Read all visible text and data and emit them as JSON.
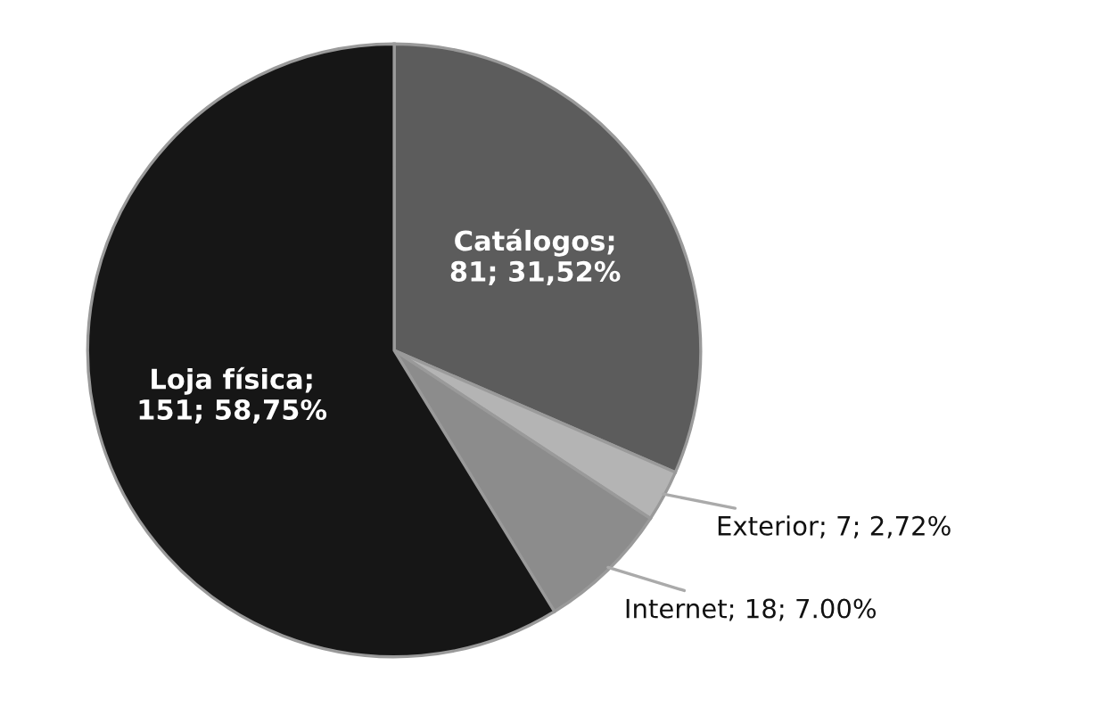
{
  "chart_data": {
    "type": "pie",
    "categories": [
      "Catálogos",
      "Exterior",
      "Internet",
      "Loja física"
    ],
    "values": [
      81,
      7,
      18,
      151
    ],
    "value_labels": [
      "; 81; 31,52%",
      "; 7; 2,72%",
      "; 18; 7.00%",
      "; 151; 58,75%"
    ],
    "colors": [
      "#5c5c5c",
      "#b4b4b4",
      "#8c8c8c",
      "#161616"
    ]
  }
}
